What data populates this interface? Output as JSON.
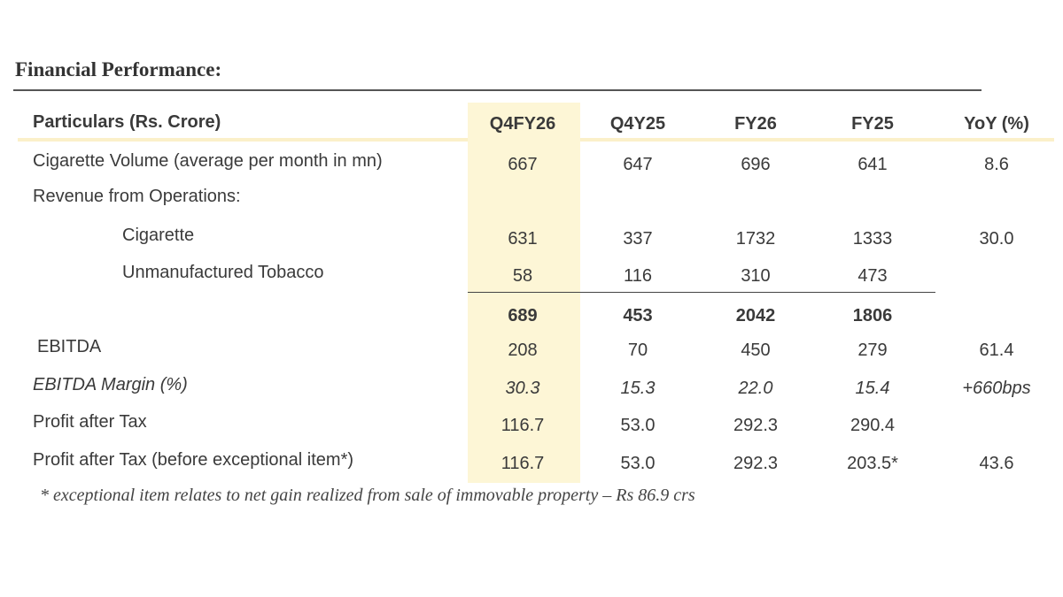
{
  "title": "Financial Performance:",
  "table": {
    "header": [
      "Particulars (Rs. Crore)",
      "Q4FY26",
      "Q4Y25",
      "FY26",
      "FY25",
      "YoY (%)"
    ],
    "rows": [
      {
        "label": "Cigarette Volume (average per month in mn)",
        "cells": [
          "667",
          "647",
          "696",
          "641",
          "8.6"
        ]
      },
      {
        "label": "Revenue from Operations:",
        "cells": [
          null,
          null,
          null,
          null,
          null
        ]
      },
      {
        "label": "Cigarette",
        "cells": [
          "631",
          "337",
          "1732",
          "1333",
          "30.0"
        ]
      },
      {
        "label": "Unmanufactured Tobacco",
        "cells": [
          "58",
          "116",
          "310",
          "473",
          null
        ]
      },
      {
        "label": null,
        "cells": [
          "689",
          "453",
          "2042",
          "1806",
          null
        ]
      },
      {
        "label": "EBITDA",
        "cells": [
          "208",
          "70",
          "450",
          "279",
          "61.4"
        ]
      },
      {
        "label": "EBITDA Margin (%)",
        "cells": [
          "30.3",
          "15.3",
          "22.0",
          "15.4",
          "+660bps"
        ]
      },
      {
        "label": "Profit after Tax",
        "cells": [
          "116.7",
          "53.0",
          "292.3",
          "290.4",
          null
        ]
      },
      {
        "label": "Profit after Tax (before exceptional item*)",
        "cells": [
          "116.7",
          "53.0",
          "292.3",
          "203.5*",
          "43.6"
        ]
      }
    ]
  },
  "footnote": "* exceptional item relates to net gain realized from sale of immovable property – Rs 86.9 crs"
}
